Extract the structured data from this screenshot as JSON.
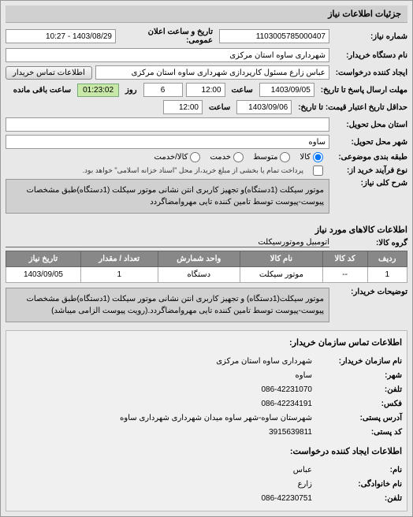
{
  "header": "جزئیات اطلاعات نیاز",
  "fields": {
    "need_no_label": "شماره نیاز:",
    "need_no": "1103005785000407",
    "datetime_label": "تاریخ و ساعت اعلان عمومی:",
    "datetime": "1403/08/29 - 10:27",
    "buyer_device_label": "نام دستگاه خریدار:",
    "buyer_device": "شهرداری ساوه استان مرکزی",
    "creator_label": "ایجاد کننده درخواست:",
    "creator": "عباس زارع مسئول کارپردازی شهرداری ساوه استان مرکزی",
    "contact_btn": "اطلاعات تماس خریدار",
    "deadline_label": "مهلت ارسال پاسخ تا تاریخ:",
    "deadline_date": "1403/09/05",
    "time_label": "ساعت",
    "deadline_time": "12:00",
    "day_label": "روز",
    "days_remaining": "6",
    "remaining_time": "01:23:02",
    "remaining_label": "ساعت باقی مانده",
    "validity_label": "حداقل تاریخ اعتبار قیمت: تا تاریخ:",
    "validity_date": "1403/09/06",
    "validity_time": "12:00",
    "province_label": "استان محل تحویل:",
    "city_label": "شهر محل تحویل:",
    "city_value": "ساوه",
    "weight_label": "طبقه بندی موضوعی:",
    "weight_opts": {
      "kala": "کالا",
      "motevasset": "متوسط",
      "khedmat": "خدمت",
      "kala_khedmat": "کالا/خدمت"
    },
    "process_label": "نوع فرآیند خرید از:",
    "process_note": "پرداخت تمام یا بخشی از مبلغ خرید،از محل \"اسناد خزانه اسلامی\" خواهد بود.",
    "desc_label": "شرح کلی نیاز:",
    "desc": "موتور سیکلت (1دستگاه)و تجهیز کاربری انتن نشانی موتور سیکلت (1دستگاه)طبق مشخصات پیوست-پیوست توسط تامین کننده تایی مهروامضاگردد"
  },
  "goods_section": {
    "title": "اطلاعات کالاهای مورد نیاز",
    "group_label": "گروه کالا:",
    "group_value": "اتومبیل وموتورسیکلت",
    "columns": [
      "ردیف",
      "کد کالا",
      "نام کالا",
      "واحد شمارش",
      "تعداد / مقدار",
      "تاریخ نیاز"
    ],
    "rows": [
      [
        "1",
        "--",
        "موتور سیکلت",
        "دستگاه",
        "1",
        "1403/09/05"
      ]
    ],
    "buyer_notes_label": "توضیحات خریدار:",
    "buyer_notes": "موتور سیکلت(1دستگاه) و تجهیز کاربری انتن نشانی موتور سیکلت (1دستگاه)طبق مشخصات پیوست-پیوست توسط تامین کننده تایی مهروامضاگردد.(رویت پیوست الزامی میباشد)"
  },
  "contact": {
    "title": "اطلاعات تماس سازمان خریدار:",
    "org_label": "نام سازمان خریدار:",
    "org": "شهرداری ساوه استان مرکزی",
    "city_label": "شهر:",
    "city": "ساوه",
    "phone_label": "تلفن:",
    "phone": "086-42231070",
    "fax_label": "فکس:",
    "fax": "086-42234191",
    "address_label": "آدرس پستی:",
    "address": "شهرستان ساوه-شهر ساوه میدان شهرداری شهرداری ساوه",
    "postal_label": "کد پستی:",
    "postal": "3915639811",
    "creator_info_title": "اطلاعات ایجاد کننده درخواست:",
    "name_label": "نام:",
    "name": "عباس",
    "lastname_label": "نام خانوادگی:",
    "lastname": "زارع",
    "creator_phone_label": "تلفن:",
    "creator_phone": "086-42230751"
  },
  "colors": {
    "header_bg": "#d0d0d0",
    "table_header_bg": "#888888",
    "remaining_bg": "#c8e8a8"
  }
}
